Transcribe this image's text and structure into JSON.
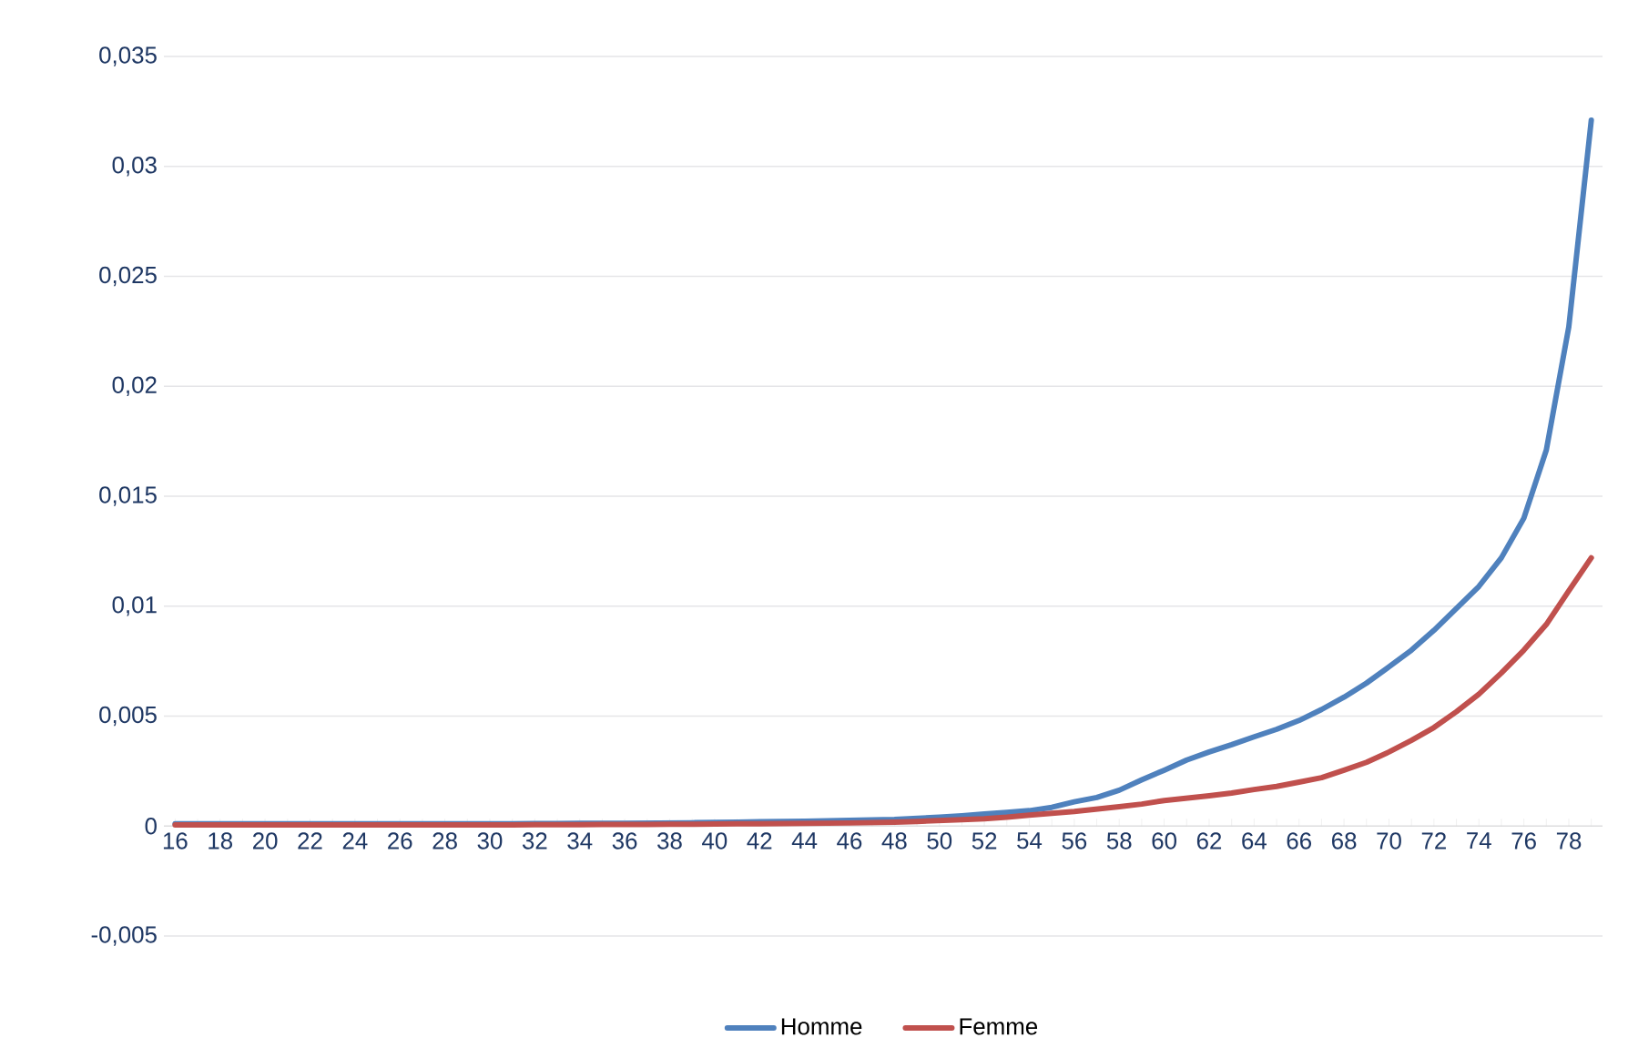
{
  "chart_data": {
    "type": "line",
    "categories": [
      "16",
      null,
      "18",
      null,
      "20",
      null,
      "22",
      null,
      "24",
      null,
      "26",
      null,
      "28",
      null,
      "30",
      null,
      "32",
      null,
      "34",
      null,
      "36",
      null,
      "38",
      null,
      "40",
      null,
      "42",
      null,
      "44",
      null,
      "46",
      null,
      "48",
      null,
      "50",
      null,
      "52",
      null,
      "54",
      null,
      "56",
      null,
      "58",
      null,
      "60",
      null,
      "62",
      null,
      "64",
      null,
      "66",
      null,
      "68",
      null,
      "70",
      null,
      "72",
      null,
      "74",
      null,
      "76",
      null,
      "78",
      null
    ],
    "series": [
      {
        "name": "Homme",
        "color": "#4f81bd",
        "values": [
          0.0001,
          0.0001,
          0.0001,
          0.0001,
          0.0001,
          0.0001,
          0.0001,
          0.0001,
          0.0001,
          0.0001,
          0.0001,
          0.0001,
          0.0001,
          0.0001,
          0.0001,
          0.0001,
          0.00011,
          0.00011,
          0.00012,
          0.00012,
          0.00012,
          0.00013,
          0.00014,
          0.00015,
          0.00017,
          0.00018,
          0.0002,
          0.00021,
          0.00022,
          0.00024,
          0.00026,
          0.00028,
          0.0003,
          0.00035,
          0.0004,
          0.00047,
          0.00055,
          0.00062,
          0.0007,
          0.00085,
          0.0011,
          0.0013,
          0.00163,
          0.0021,
          0.00254,
          0.003,
          0.00337,
          0.0037,
          0.00406,
          0.0044,
          0.0048,
          0.0053,
          0.00586,
          0.0065,
          0.00724,
          0.008,
          0.0089,
          0.0099,
          0.0109,
          0.0122,
          0.014,
          0.0171,
          0.0227,
          0.0321
        ]
      },
      {
        "name": "Femme",
        "color": "#c0504d",
        "values": [
          5e-05,
          5e-05,
          5e-05,
          5e-05,
          5e-05,
          5e-05,
          5e-05,
          5e-05,
          5e-05,
          5e-05,
          5e-05,
          5e-05,
          5e-05,
          5e-05,
          5e-05,
          5e-05,
          6e-05,
          6e-05,
          6e-05,
          7e-05,
          7e-05,
          7e-05,
          8e-05,
          8e-05,
          9e-05,
          0.0001,
          0.0001,
          0.00011,
          0.00012,
          0.00013,
          0.00014,
          0.00016,
          0.00018,
          0.00021,
          0.00025,
          0.00029,
          0.00033,
          0.0004,
          0.0005,
          0.00058,
          0.00066,
          0.00077,
          0.00088,
          0.001,
          0.00116,
          0.00127,
          0.00138,
          0.0015,
          0.00166,
          0.0018,
          0.002,
          0.0022,
          0.00254,
          0.0029,
          0.00337,
          0.0039,
          0.00448,
          0.0052,
          0.006,
          0.00696,
          0.008,
          0.00917,
          0.0107,
          0.0122
        ]
      }
    ],
    "ylim": [
      -0.005,
      0.035
    ],
    "yticks": [
      {
        "value": -0.005,
        "label": "-0,005"
      },
      {
        "value": 0,
        "label": "0"
      },
      {
        "value": 0.005,
        "label": "0,005"
      },
      {
        "value": 0.01,
        "label": "0,01"
      },
      {
        "value": 0.015,
        "label": "0,015"
      },
      {
        "value": 0.02,
        "label": "0,02"
      },
      {
        "value": 0.025,
        "label": "0,025"
      },
      {
        "value": 0.03,
        "label": "0,03"
      },
      {
        "value": 0.035,
        "label": "0,035"
      }
    ],
    "grid": "y",
    "legend": "bottom",
    "marker": "none",
    "line_style": "solid"
  }
}
